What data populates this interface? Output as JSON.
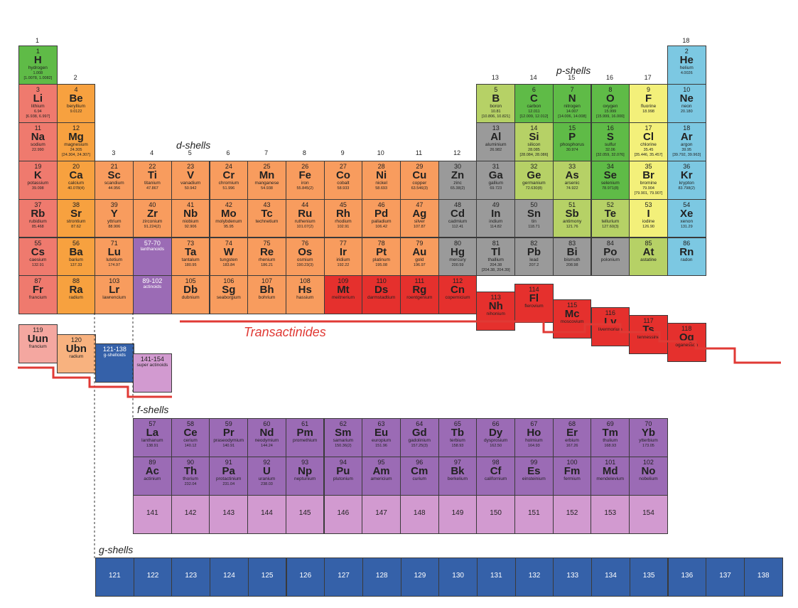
{
  "colors": {
    "alkali": "#ef7a6e",
    "alkaline": "#f7a13f",
    "dblock": "#f89c5e",
    "post": "#9a9a9a",
    "metalloid": "#b6d166",
    "nonmetal": "#5fbb47",
    "halogen": "#f3f07a",
    "noble": "#7cc8e2",
    "lanthanide": "#9b6bb5",
    "actinide": "#9b6bb5",
    "superheavy": "#e5302d",
    "g": "#3561a9",
    "sa": "#d29ad0",
    "uun": "#f4a7a0",
    "ubn": "#f8b27f",
    "line": "#e03a35"
  },
  "groups": [
    "1",
    "2",
    "3",
    "4",
    "5",
    "6",
    "7",
    "8",
    "9",
    "10",
    "11",
    "12",
    "13",
    "14",
    "15",
    "16",
    "17",
    "18"
  ],
  "shell_labels": {
    "p": "p-shells",
    "d": "d-shells",
    "f": "f-shells",
    "g": "g-shells",
    "trans": "Transactinides"
  },
  "elements": [
    {
      "n": "1",
      "s": "H",
      "nm": "hydrogen",
      "m": "1.008\n[1.0078, 1.0082]",
      "c": "nonmetal",
      "r": 0,
      "col": 0
    },
    {
      "n": "2",
      "s": "He",
      "nm": "helium",
      "m": "4.0026",
      "c": "noble",
      "r": 0,
      "col": 17
    },
    {
      "n": "3",
      "s": "Li",
      "nm": "lithium",
      "m": "6.94\n[6.938, 6.997]",
      "c": "alkali",
      "r": 1,
      "col": 0
    },
    {
      "n": "4",
      "s": "Be",
      "nm": "beryllium",
      "m": "9.0122",
      "c": "alkaline",
      "r": 1,
      "col": 1
    },
    {
      "n": "5",
      "s": "B",
      "nm": "boron",
      "m": "10.81\n[10.806, 10.821]",
      "c": "metalloid",
      "r": 1,
      "col": 12
    },
    {
      "n": "6",
      "s": "C",
      "nm": "carbon",
      "m": "12.011\n[12.009, 12.012]",
      "c": "nonmetal",
      "r": 1,
      "col": 13
    },
    {
      "n": "7",
      "s": "N",
      "nm": "nitrogen",
      "m": "14.007\n[14.006, 14.008]",
      "c": "nonmetal",
      "r": 1,
      "col": 14
    },
    {
      "n": "8",
      "s": "O",
      "nm": "oxygen",
      "m": "15.999\n[15.999, 16.000]",
      "c": "nonmetal",
      "r": 1,
      "col": 15
    },
    {
      "n": "9",
      "s": "F",
      "nm": "fluorine",
      "m": "18.998",
      "c": "halogen",
      "r": 1,
      "col": 16
    },
    {
      "n": "10",
      "s": "Ne",
      "nm": "neon",
      "m": "20.180",
      "c": "noble",
      "r": 1,
      "col": 17
    },
    {
      "n": "11",
      "s": "Na",
      "nm": "sodium",
      "m": "22.990",
      "c": "alkali",
      "r": 2,
      "col": 0
    },
    {
      "n": "12",
      "s": "Mg",
      "nm": "magnesium",
      "m": "24.305\n[24.304, 24.307]",
      "c": "alkaline",
      "r": 2,
      "col": 1
    },
    {
      "n": "13",
      "s": "Al",
      "nm": "aluminium",
      "m": "26.982",
      "c": "post",
      "r": 2,
      "col": 12
    },
    {
      "n": "14",
      "s": "Si",
      "nm": "silicon",
      "m": "28.085\n[28.084, 28.086]",
      "c": "metalloid",
      "r": 2,
      "col": 13
    },
    {
      "n": "15",
      "s": "P",
      "nm": "phosphorus",
      "m": "30.974",
      "c": "nonmetal",
      "r": 2,
      "col": 14
    },
    {
      "n": "16",
      "s": "S",
      "nm": "sulfur",
      "m": "32.06\n[32.059, 32.076]",
      "c": "nonmetal",
      "r": 2,
      "col": 15
    },
    {
      "n": "17",
      "s": "Cl",
      "nm": "chlorine",
      "m": "35.45\n[35.446, 35.457]",
      "c": "halogen",
      "r": 2,
      "col": 16
    },
    {
      "n": "18",
      "s": "Ar",
      "nm": "argon",
      "m": "39.95\n[39.792, 39.963]",
      "c": "noble",
      "r": 2,
      "col": 17
    },
    {
      "n": "19",
      "s": "K",
      "nm": "potassium",
      "m": "39.098",
      "c": "alkali",
      "r": 3,
      "col": 0
    },
    {
      "n": "20",
      "s": "Ca",
      "nm": "calcium",
      "m": "40.078(4)",
      "c": "alkaline",
      "r": 3,
      "col": 1
    },
    {
      "n": "21",
      "s": "Sc",
      "nm": "scandium",
      "m": "44.956",
      "c": "dblock",
      "r": 3,
      "col": 2
    },
    {
      "n": "22",
      "s": "Ti",
      "nm": "titanium",
      "m": "47.867",
      "c": "dblock",
      "r": 3,
      "col": 3
    },
    {
      "n": "23",
      "s": "V",
      "nm": "vanadium",
      "m": "50.942",
      "c": "dblock",
      "r": 3,
      "col": 4
    },
    {
      "n": "24",
      "s": "Cr",
      "nm": "chromium",
      "m": "51.996",
      "c": "dblock",
      "r": 3,
      "col": 5
    },
    {
      "n": "25",
      "s": "Mn",
      "nm": "manganese",
      "m": "54.938",
      "c": "dblock",
      "r": 3,
      "col": 6
    },
    {
      "n": "26",
      "s": "Fe",
      "nm": "iron",
      "m": "55.845(2)",
      "c": "dblock",
      "r": 3,
      "col": 7
    },
    {
      "n": "27",
      "s": "Co",
      "nm": "cobalt",
      "m": "58.933",
      "c": "dblock",
      "r": 3,
      "col": 8
    },
    {
      "n": "28",
      "s": "Ni",
      "nm": "nickel",
      "m": "58.693",
      "c": "dblock",
      "r": 3,
      "col": 9
    },
    {
      "n": "29",
      "s": "Cu",
      "nm": "copper",
      "m": "63.546(3)",
      "c": "dblock",
      "r": 3,
      "col": 10
    },
    {
      "n": "30",
      "s": "Zn",
      "nm": "zinc",
      "m": "65.38(2)",
      "c": "post",
      "r": 3,
      "col": 11
    },
    {
      "n": "31",
      "s": "Ga",
      "nm": "gallium",
      "m": "69.723",
      "c": "post",
      "r": 3,
      "col": 12
    },
    {
      "n": "32",
      "s": "Ge",
      "nm": "germanium",
      "m": "72.630(8)",
      "c": "metalloid",
      "r": 3,
      "col": 13
    },
    {
      "n": "33",
      "s": "As",
      "nm": "arsenic",
      "m": "74.922",
      "c": "metalloid",
      "r": 3,
      "col": 14
    },
    {
      "n": "34",
      "s": "Se",
      "nm": "selenium",
      "m": "78.971(8)",
      "c": "nonmetal",
      "r": 3,
      "col": 15
    },
    {
      "n": "35",
      "s": "Br",
      "nm": "bromine",
      "m": "79.904\n[79.901, 79.907]",
      "c": "halogen",
      "r": 3,
      "col": 16
    },
    {
      "n": "36",
      "s": "Kr",
      "nm": "krypton",
      "m": "83.798(2)",
      "c": "noble",
      "r": 3,
      "col": 17
    },
    {
      "n": "37",
      "s": "Rb",
      "nm": "rubidium",
      "m": "85.468",
      "c": "alkali",
      "r": 4,
      "col": 0
    },
    {
      "n": "38",
      "s": "Sr",
      "nm": "strontium",
      "m": "87.62",
      "c": "alkaline",
      "r": 4,
      "col": 1
    },
    {
      "n": "39",
      "s": "Y",
      "nm": "yttrium",
      "m": "88.906",
      "c": "dblock",
      "r": 4,
      "col": 2
    },
    {
      "n": "40",
      "s": "Zr",
      "nm": "zirconium",
      "m": "91.224(2)",
      "c": "dblock",
      "r": 4,
      "col": 3
    },
    {
      "n": "41",
      "s": "Nb",
      "nm": "niobium",
      "m": "92.906",
      "c": "dblock",
      "r": 4,
      "col": 4
    },
    {
      "n": "42",
      "s": "Mo",
      "nm": "molybdenum",
      "m": "95.95",
      "c": "dblock",
      "r": 4,
      "col": 5
    },
    {
      "n": "43",
      "s": "Tc",
      "nm": "technetium",
      "m": "",
      "c": "dblock",
      "r": 4,
      "col": 6
    },
    {
      "n": "44",
      "s": "Ru",
      "nm": "ruthenium",
      "m": "101.07(2)",
      "c": "dblock",
      "r": 4,
      "col": 7
    },
    {
      "n": "45",
      "s": "Rh",
      "nm": "rhodium",
      "m": "102.91",
      "c": "dblock",
      "r": 4,
      "col": 8
    },
    {
      "n": "46",
      "s": "Pd",
      "nm": "palladium",
      "m": "106.42",
      "c": "dblock",
      "r": 4,
      "col": 9
    },
    {
      "n": "47",
      "s": "Ag",
      "nm": "silver",
      "m": "107.87",
      "c": "dblock",
      "r": 4,
      "col": 10
    },
    {
      "n": "48",
      "s": "Cd",
      "nm": "cadmium",
      "m": "112.41",
      "c": "post",
      "r": 4,
      "col": 11
    },
    {
      "n": "49",
      "s": "In",
      "nm": "indium",
      "m": "114.82",
      "c": "post",
      "r": 4,
      "col": 12
    },
    {
      "n": "50",
      "s": "Sn",
      "nm": "tin",
      "m": "118.71",
      "c": "post",
      "r": 4,
      "col": 13
    },
    {
      "n": "51",
      "s": "Sb",
      "nm": "antimony",
      "m": "121.76",
      "c": "metalloid",
      "r": 4,
      "col": 14
    },
    {
      "n": "52",
      "s": "Te",
      "nm": "tellurium",
      "m": "127.60(3)",
      "c": "metalloid",
      "r": 4,
      "col": 15
    },
    {
      "n": "53",
      "s": "I",
      "nm": "iodine",
      "m": "126.90",
      "c": "halogen",
      "r": 4,
      "col": 16
    },
    {
      "n": "54",
      "s": "Xe",
      "nm": "xenon",
      "m": "131.29",
      "c": "noble",
      "r": 4,
      "col": 17
    },
    {
      "n": "55",
      "s": "Cs",
      "nm": "caesium",
      "m": "132.91",
      "c": "alkali",
      "r": 5,
      "col": 0
    },
    {
      "n": "56",
      "s": "Ba",
      "nm": "barium",
      "m": "137.33",
      "c": "alkaline",
      "r": 5,
      "col": 1
    },
    {
      "n": "71",
      "s": "Lu",
      "nm": "lutetium",
      "m": "174.97",
      "c": "dblock",
      "r": 5,
      "col": 2
    },
    {
      "n": "72",
      "s": "Hf",
      "nm": "hafnium",
      "m": "178.49(2)",
      "c": "dblock",
      "r": 5,
      "col": 3
    },
    {
      "n": "73",
      "s": "Ta",
      "nm": "tantalum",
      "m": "180.95",
      "c": "dblock",
      "r": 5,
      "col": 4
    },
    {
      "n": "74",
      "s": "W",
      "nm": "tungsten",
      "m": "183.84",
      "c": "dblock",
      "r": 5,
      "col": 5
    },
    {
      "n": "75",
      "s": "Re",
      "nm": "rhenium",
      "m": "186.21",
      "c": "dblock",
      "r": 5,
      "col": 6
    },
    {
      "n": "76",
      "s": "Os",
      "nm": "osmium",
      "m": "190.23(3)",
      "c": "dblock",
      "r": 5,
      "col": 7
    },
    {
      "n": "77",
      "s": "Ir",
      "nm": "iridium",
      "m": "192.22",
      "c": "dblock",
      "r": 5,
      "col": 8
    },
    {
      "n": "78",
      "s": "Pt",
      "nm": "platinum",
      "m": "195.08",
      "c": "dblock",
      "r": 5,
      "col": 9
    },
    {
      "n": "79",
      "s": "Au",
      "nm": "gold",
      "m": "196.97",
      "c": "dblock",
      "r": 5,
      "col": 10
    },
    {
      "n": "80",
      "s": "Hg",
      "nm": "mercury",
      "m": "200.59",
      "c": "post",
      "r": 5,
      "col": 11
    },
    {
      "n": "81",
      "s": "Tl",
      "nm": "thallium",
      "m": "204.38\n[204.38, 204.39]",
      "c": "post",
      "r": 5,
      "col": 12
    },
    {
      "n": "82",
      "s": "Pb",
      "nm": "lead",
      "m": "207.2",
      "c": "post",
      "r": 5,
      "col": 13
    },
    {
      "n": "83",
      "s": "Bi",
      "nm": "bismuth",
      "m": "208.98",
      "c": "post",
      "r": 5,
      "col": 14
    },
    {
      "n": "84",
      "s": "Po",
      "nm": "polonium",
      "m": "",
      "c": "post",
      "r": 5,
      "col": 15
    },
    {
      "n": "85",
      "s": "At",
      "nm": "astatine",
      "m": "",
      "c": "metalloid",
      "r": 5,
      "col": 16
    },
    {
      "n": "86",
      "s": "Rn",
      "nm": "radon",
      "m": "",
      "c": "noble",
      "r": 5,
      "col": 17
    },
    {
      "n": "87",
      "s": "Fr",
      "nm": "francium",
      "m": "",
      "c": "alkali",
      "r": 6,
      "col": 0
    },
    {
      "n": "88",
      "s": "Ra",
      "nm": "radium",
      "m": "",
      "c": "alkaline",
      "r": 6,
      "col": 1
    },
    {
      "n": "103",
      "s": "Lr",
      "nm": "lawrencium",
      "m": "",
      "c": "dblock",
      "r": 6,
      "col": 2
    },
    {
      "n": "104",
      "s": "Rf",
      "nm": "rutherfordium",
      "m": "",
      "c": "dblock",
      "r": 6,
      "col": 3
    },
    {
      "n": "105",
      "s": "Db",
      "nm": "dubnium",
      "m": "",
      "c": "dblock",
      "r": 6,
      "col": 4
    },
    {
      "n": "106",
      "s": "Sg",
      "nm": "seaborgium",
      "m": "",
      "c": "dblock",
      "r": 6,
      "col": 5
    },
    {
      "n": "107",
      "s": "Bh",
      "nm": "bohrium",
      "m": "",
      "c": "dblock",
      "r": 6,
      "col": 6
    },
    {
      "n": "108",
      "s": "Hs",
      "nm": "hassium",
      "m": "",
      "c": "dblock",
      "r": 6,
      "col": 7
    },
    {
      "n": "109",
      "s": "Mt",
      "nm": "meitnerium",
      "m": "",
      "c": "superheavy",
      "r": 6,
      "col": 8
    },
    {
      "n": "110",
      "s": "Ds",
      "nm": "darmstadtium",
      "m": "",
      "c": "superheavy",
      "r": 6,
      "col": 9
    },
    {
      "n": "111",
      "s": "Rg",
      "nm": "roentgenium",
      "m": "",
      "c": "superheavy",
      "r": 6,
      "col": 10
    },
    {
      "n": "112",
      "s": "Cn",
      "nm": "copernicium",
      "m": "",
      "c": "superheavy",
      "r": 6,
      "col": 11
    }
  ],
  "stepped": [
    {
      "n": "113",
      "s": "Nh",
      "nm": "nihonium",
      "c": "superheavy",
      "col": 12,
      "drop": 1
    },
    {
      "n": "114",
      "s": "Fl",
      "nm": "flerovium",
      "c": "superheavy",
      "col": 13,
      "drop": 0
    },
    {
      "n": "115",
      "s": "Mc",
      "nm": "moscovium",
      "c": "superheavy",
      "col": 14,
      "drop": 2
    },
    {
      "n": "116",
      "s": "Lv",
      "nm": "livermorium",
      "c": "superheavy",
      "col": 15,
      "drop": 3
    },
    {
      "n": "117",
      "s": "Ts",
      "nm": "tennessine",
      "c": "superheavy",
      "col": 16,
      "drop": 4
    },
    {
      "n": "118",
      "s": "Og",
      "nm": "oganesson",
      "c": "superheavy",
      "col": 17,
      "drop": 5
    }
  ],
  "placeholders": [
    {
      "n": "57-70",
      "nm": "lanthanoids",
      "c": "lanthanide",
      "r": 5
    },
    {
      "n": "89-102",
      "nm": "actinoids",
      "c": "actinide",
      "r": 6
    }
  ],
  "extra": [
    {
      "n": "119",
      "s": "Uun",
      "nm": "francium",
      "c": "uun"
    },
    {
      "n": "120",
      "s": "Ubn",
      "nm": "radium",
      "c": "ubn"
    },
    {
      "n": "121-138",
      "s": "",
      "nm": "g-shelloids",
      "c": "g"
    },
    {
      "n": "141-154",
      "s": "",
      "nm": "super actinoids",
      "c": "sa"
    }
  ],
  "f_rows": [
    [
      {
        "n": "57",
        "s": "La",
        "nm": "lanthanum",
        "m": "138.91"
      },
      {
        "n": "58",
        "s": "Ce",
        "nm": "cerium",
        "m": "140.12"
      },
      {
        "n": "59",
        "s": "Pr",
        "nm": "praseodymium",
        "m": "140.91"
      },
      {
        "n": "60",
        "s": "Nd",
        "nm": "neodymium",
        "m": "144.24"
      },
      {
        "n": "61",
        "s": "Pm",
        "nm": "promethium",
        "m": ""
      },
      {
        "n": "62",
        "s": "Sm",
        "nm": "samarium",
        "m": "150.36(2)"
      },
      {
        "n": "63",
        "s": "Eu",
        "nm": "europium",
        "m": "151.96"
      },
      {
        "n": "64",
        "s": "Gd",
        "nm": "gadolinium",
        "m": "157.25(3)"
      },
      {
        "n": "65",
        "s": "Tb",
        "nm": "terbium",
        "m": "158.93"
      },
      {
        "n": "66",
        "s": "Dy",
        "nm": "dysprosium",
        "m": "162.50"
      },
      {
        "n": "67",
        "s": "Ho",
        "nm": "holmium",
        "m": "164.93"
      },
      {
        "n": "68",
        "s": "Er",
        "nm": "erbium",
        "m": "167.26"
      },
      {
        "n": "69",
        "s": "Tm",
        "nm": "thulium",
        "m": "168.93"
      },
      {
        "n": "70",
        "s": "Yb",
        "nm": "ytterbium",
        "m": "173.05"
      }
    ],
    [
      {
        "n": "89",
        "s": "Ac",
        "nm": "actinium",
        "m": ""
      },
      {
        "n": "90",
        "s": "Th",
        "nm": "thorium",
        "m": "232.04"
      },
      {
        "n": "91",
        "s": "Pa",
        "nm": "protactinium",
        "m": "231.04"
      },
      {
        "n": "92",
        "s": "U",
        "nm": "uranium",
        "m": "238.03"
      },
      {
        "n": "93",
        "s": "Np",
        "nm": "neptunium",
        "m": ""
      },
      {
        "n": "94",
        "s": "Pu",
        "nm": "plutonium",
        "m": ""
      },
      {
        "n": "95",
        "s": "Am",
        "nm": "americium",
        "m": ""
      },
      {
        "n": "96",
        "s": "Cm",
        "nm": "curium",
        "m": ""
      },
      {
        "n": "97",
        "s": "Bk",
        "nm": "berkelium",
        "m": ""
      },
      {
        "n": "98",
        "s": "Cf",
        "nm": "californium",
        "m": ""
      },
      {
        "n": "99",
        "s": "Es",
        "nm": "einsteinium",
        "m": ""
      },
      {
        "n": "100",
        "s": "Fm",
        "nm": "fermium",
        "m": ""
      },
      {
        "n": "101",
        "s": "Md",
        "nm": "mendelevium",
        "m": ""
      },
      {
        "n": "102",
        "s": "No",
        "nm": "nobelium",
        "m": ""
      }
    ]
  ],
  "sa_row": [
    "141",
    "142",
    "143",
    "144",
    "145",
    "146",
    "147",
    "148",
    "149",
    "150",
    "151",
    "152",
    "153",
    "154"
  ],
  "g_row": [
    "121",
    "122",
    "123",
    "124",
    "125",
    "126",
    "127",
    "128",
    "129",
    "130",
    "131",
    "132",
    "133",
    "134",
    "135",
    "136",
    "137",
    "138"
  ]
}
